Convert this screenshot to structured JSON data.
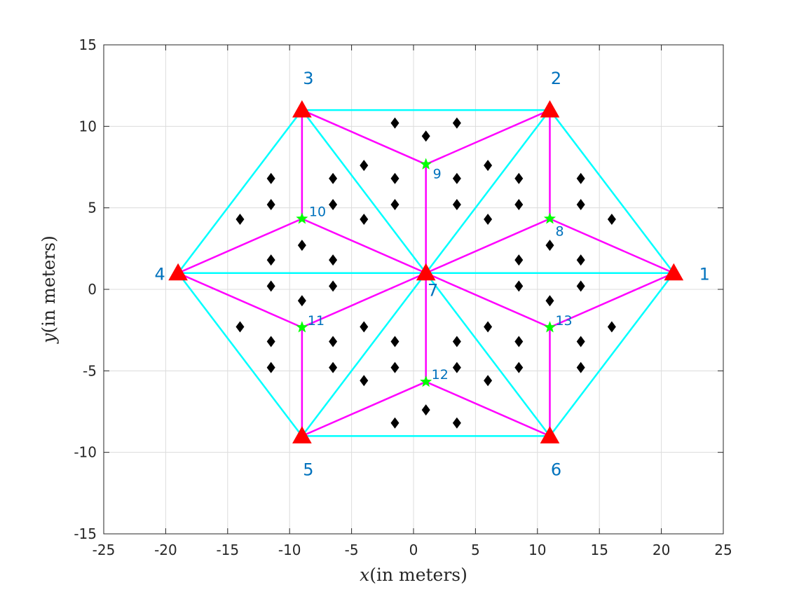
{
  "chart_data": {
    "type": "scatter",
    "xlabel": {
      "var": "x",
      "rest": "(in meters)"
    },
    "ylabel": {
      "var": "y",
      "rest": "(in meters)"
    },
    "xlim": [
      -25,
      25
    ],
    "ylim": [
      -15,
      15
    ],
    "xticks": [
      -25,
      -20,
      -15,
      -10,
      -5,
      0,
      5,
      10,
      15,
      20,
      25
    ],
    "yticks": [
      -15,
      -10,
      -5,
      0,
      5,
      10,
      15
    ],
    "xtick_labels": [
      "-25",
      "-20",
      "-15",
      "-10",
      "-5",
      "0",
      "5",
      "10",
      "15",
      "20",
      "25"
    ],
    "ytick_labels": [
      "-15",
      "-10",
      "-5",
      "0",
      "5",
      "10",
      "15"
    ],
    "grid": true,
    "colors": {
      "anchor": "#FF0000",
      "star": "#00FF00",
      "diamond": "#000000",
      "hexagon_edge": "#00FFFF",
      "link_edge": "#FF00FF",
      "label": "#0072BD"
    },
    "anchors": [
      {
        "id": 1,
        "label": "1",
        "x": 21,
        "y": 1
      },
      {
        "id": 2,
        "label": "2",
        "x": 11,
        "y": 11
      },
      {
        "id": 3,
        "label": "3",
        "x": -9,
        "y": 11
      },
      {
        "id": 4,
        "label": "4",
        "x": -19,
        "y": 1
      },
      {
        "id": 5,
        "label": "5",
        "x": -9,
        "y": -9
      },
      {
        "id": 6,
        "label": "6",
        "x": 11,
        "y": -9
      },
      {
        "id": 7,
        "label": "7",
        "x": 1,
        "y": 1
      }
    ],
    "stars": [
      {
        "id": 8,
        "label": "8",
        "x": 11,
        "y": 4.33
      },
      {
        "id": 9,
        "label": "9",
        "x": 1,
        "y": 7.67
      },
      {
        "id": 10,
        "label": "10",
        "x": -9,
        "y": 4.33
      },
      {
        "id": 11,
        "label": "11",
        "x": -9,
        "y": -2.33
      },
      {
        "id": 12,
        "label": "12",
        "x": 1,
        "y": -5.67
      },
      {
        "id": 13,
        "label": "13",
        "x": 11,
        "y": -2.33
      }
    ],
    "diamonds": [
      [
        -1.5,
        10.2
      ],
      [
        1,
        9.4
      ],
      [
        3.5,
        10.2
      ],
      [
        -4,
        7.6
      ],
      [
        -1.5,
        6.8
      ],
      [
        3.5,
        6.8
      ],
      [
        6,
        7.6
      ],
      [
        -11.5,
        6.8
      ],
      [
        -6.5,
        6.8
      ],
      [
        8.5,
        6.8
      ],
      [
        13.5,
        6.8
      ],
      [
        -11.5,
        5.2
      ],
      [
        -6.5,
        5.2
      ],
      [
        -1.5,
        5.2
      ],
      [
        3.5,
        5.2
      ],
      [
        8.5,
        5.2
      ],
      [
        13.5,
        5.2
      ],
      [
        -14,
        4.3
      ],
      [
        -4,
        4.3
      ],
      [
        6,
        4.3
      ],
      [
        16,
        4.3
      ],
      [
        -9,
        2.7
      ],
      [
        11,
        2.7
      ],
      [
        -11.5,
        1.8
      ],
      [
        -6.5,
        1.8
      ],
      [
        8.5,
        1.8
      ],
      [
        13.5,
        1.8
      ],
      [
        -11.5,
        0.2
      ],
      [
        -6.5,
        0.2
      ],
      [
        8.5,
        0.2
      ],
      [
        13.5,
        0.2
      ],
      [
        -9,
        -0.7
      ],
      [
        11,
        -0.7
      ],
      [
        -14,
        -2.3
      ],
      [
        -4,
        -2.3
      ],
      [
        6,
        -2.3
      ],
      [
        16,
        -2.3
      ],
      [
        -11.5,
        -3.2
      ],
      [
        -6.5,
        -3.2
      ],
      [
        -1.5,
        -3.2
      ],
      [
        3.5,
        -3.2
      ],
      [
        8.5,
        -3.2
      ],
      [
        13.5,
        -3.2
      ],
      [
        -11.5,
        -4.8
      ],
      [
        -6.5,
        -4.8
      ],
      [
        -1.5,
        -4.8
      ],
      [
        3.5,
        -4.8
      ],
      [
        8.5,
        -4.8
      ],
      [
        13.5,
        -4.8
      ],
      [
        -4,
        -5.6
      ],
      [
        6,
        -5.6
      ],
      [
        -1.5,
        -8.2
      ],
      [
        1,
        -7.4
      ],
      [
        3.5,
        -8.2
      ]
    ],
    "hexagon_edges": [
      [
        1,
        2
      ],
      [
        2,
        3
      ],
      [
        3,
        4
      ],
      [
        4,
        5
      ],
      [
        5,
        6
      ],
      [
        6,
        1
      ],
      [
        7,
        1
      ],
      [
        7,
        2
      ],
      [
        7,
        3
      ],
      [
        7,
        4
      ],
      [
        7,
        5
      ],
      [
        7,
        6
      ]
    ],
    "link_edges": [
      [
        8,
        1
      ],
      [
        8,
        2
      ],
      [
        8,
        7
      ],
      [
        9,
        2
      ],
      [
        9,
        3
      ],
      [
        9,
        7
      ],
      [
        10,
        3
      ],
      [
        10,
        4
      ],
      [
        10,
        7
      ],
      [
        11,
        4
      ],
      [
        11,
        5
      ],
      [
        11,
        7
      ],
      [
        12,
        5
      ],
      [
        12,
        6
      ],
      [
        12,
        7
      ],
      [
        13,
        6
      ],
      [
        13,
        1
      ],
      [
        13,
        7
      ]
    ]
  }
}
